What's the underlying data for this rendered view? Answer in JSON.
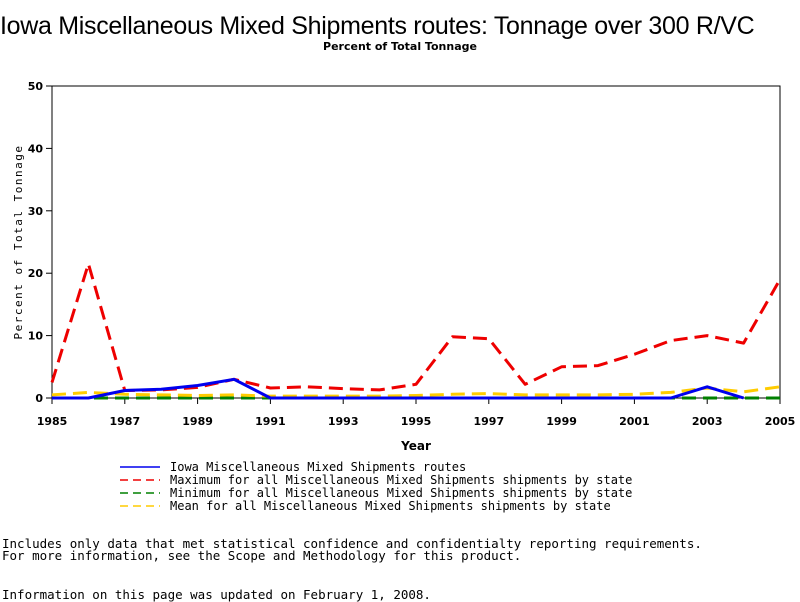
{
  "chart_data": {
    "type": "line",
    "title": "Iowa Miscellaneous Mixed Shipments routes: Tonnage over 300 R/VC",
    "subtitle": "Percent of Total Tonnage",
    "xlabel": "Year",
    "ylabel": "Percent of Total Tonnage",
    "xlim": [
      1985,
      2005
    ],
    "ylim": [
      0,
      50
    ],
    "x_ticks": [
      1985,
      1987,
      1989,
      1991,
      1993,
      1995,
      1997,
      1999,
      2001,
      2003,
      2005
    ],
    "y_ticks": [
      0,
      10,
      20,
      30,
      40,
      50
    ],
    "x": [
      1985,
      1986,
      1987,
      1988,
      1989,
      1990,
      1991,
      1992,
      1993,
      1994,
      1995,
      1996,
      1997,
      1998,
      1999,
      2000,
      2001,
      2002,
      2003,
      2004,
      2005
    ],
    "series": [
      {
        "name": "Iowa Miscellaneous Mixed Shipments routes",
        "color": "#0000ee",
        "dash": "solid",
        "values": [
          0,
          0,
          1.2,
          1.4,
          2.0,
          3.0,
          0,
          0,
          0,
          0,
          0,
          0,
          0,
          0,
          0,
          0,
          0,
          0,
          1.8,
          0,
          null
        ]
      },
      {
        "name": "Maximum for all Miscellaneous Mixed Shipments shipments by state",
        "color": "#ee0000",
        "dash": "dashed",
        "values": [
          2.5,
          21.5,
          1.2,
          1.3,
          1.7,
          3.0,
          1.6,
          1.8,
          1.5,
          1.3,
          2.2,
          9.8,
          9.5,
          2.2,
          5.0,
          5.2,
          7.0,
          9.2,
          10.0,
          8.8,
          19.0
        ]
      },
      {
        "name": "Minimum for all Miscellaneous Mixed Shipments shipments by state",
        "color": "#008000",
        "dash": "dashed",
        "values": [
          0,
          0,
          0,
          0,
          0,
          0,
          0,
          0,
          0,
          0,
          0,
          0,
          0,
          0,
          0,
          0,
          0,
          0,
          0,
          0,
          0
        ]
      },
      {
        "name": "Mean for all Miscellaneous Mixed Shipments shipments by state",
        "color": "#ffcc00",
        "dash": "dashed",
        "values": [
          0.5,
          0.9,
          0.6,
          0.5,
          0.4,
          0.5,
          0.3,
          0.3,
          0.3,
          0.3,
          0.4,
          0.6,
          0.7,
          0.5,
          0.5,
          0.5,
          0.6,
          0.9,
          1.6,
          1.0,
          1.8
        ]
      }
    ],
    "legend_position": "bottom"
  },
  "notes": {
    "line1": "Includes only data that met statistical confidence and confidentialty reporting requirements.",
    "line2": "For more information, see the Scope and Methodology for this product.",
    "line3": "Information on this page was updated on February 1, 2008."
  }
}
